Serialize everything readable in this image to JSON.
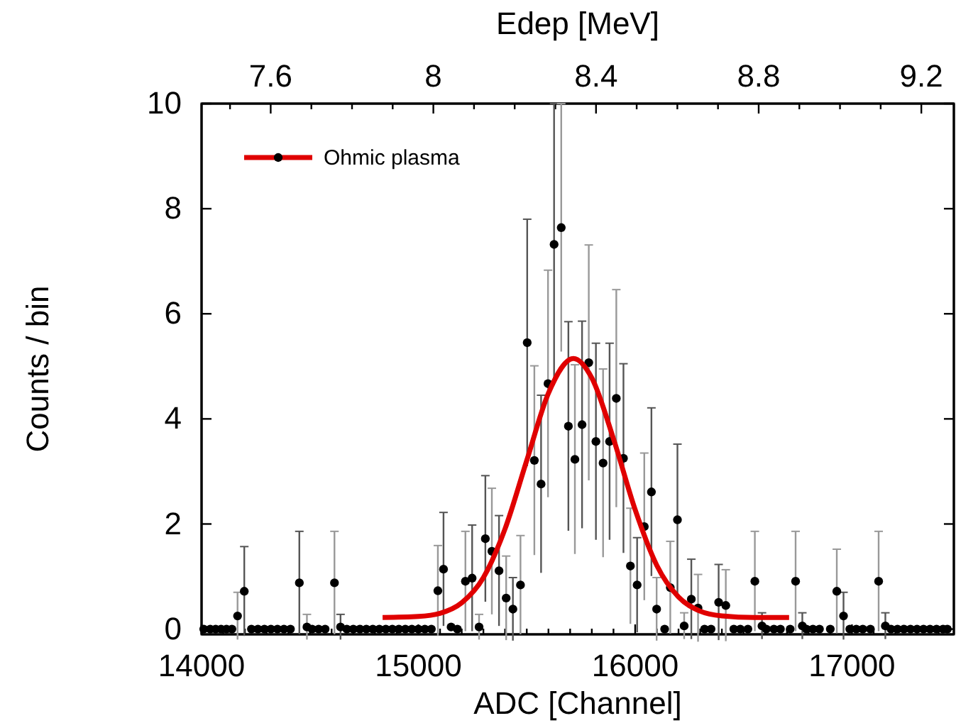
{
  "chart_data": {
    "type": "scatter",
    "xlabel": "ADC [Channel]",
    "ylabel": "Counts / bin",
    "x2label": "Edep [MeV]",
    "xlim": [
      14000,
      17470
    ],
    "ylim": [
      -0.1,
      10
    ],
    "xticks": [
      14000,
      {
        "value": 14100,
        "label": null
      },
      {
        "value": 14200,
        "label": null
      },
      {
        "value": 14300,
        "label": null
      },
      {
        "value": 14400,
        "label": null
      },
      {
        "value": 14500,
        "label": null
      },
      {
        "value": 14600,
        "label": null
      },
      {
        "value": 14700,
        "label": null
      },
      {
        "value": 14800,
        "label": null
      },
      {
        "value": 14900,
        "label": null
      },
      15000,
      {
        "value": 15100,
        "label": null
      },
      {
        "value": 15200,
        "label": null
      },
      {
        "value": 15300,
        "label": null
      },
      {
        "value": 15400,
        "label": null
      },
      {
        "value": 15500,
        "label": null
      },
      {
        "value": 15600,
        "label": null
      },
      {
        "value": 15700,
        "label": null
      },
      {
        "value": 15800,
        "label": null
      },
      {
        "value": 15900,
        "label": null
      },
      16000,
      {
        "value": 16100,
        "label": null
      },
      {
        "value": 16200,
        "label": null
      },
      {
        "value": 16300,
        "label": null
      },
      {
        "value": 16400,
        "label": null
      },
      {
        "value": 16500,
        "label": null
      },
      {
        "value": 16600,
        "label": null
      },
      {
        "value": 16700,
        "label": null
      },
      {
        "value": 16800,
        "label": null
      },
      {
        "value": 16900,
        "label": null
      },
      17000,
      {
        "value": 17100,
        "label": null
      },
      {
        "value": 17200,
        "label": null
      },
      {
        "value": 17300,
        "label": null
      },
      {
        "value": 17400,
        "label": null
      }
    ],
    "yticks": [
      0,
      2,
      4,
      6,
      8,
      10
    ],
    "x2lim": [
      7.43,
      9.28
    ],
    "x2ticks": [
      {
        "value": 7.5,
        "label": null
      },
      7.6,
      {
        "value": 7.7,
        "label": null
      },
      {
        "value": 7.8,
        "label": null
      },
      {
        "value": 7.9,
        "label": null
      },
      8,
      {
        "value": 8.1,
        "label": null
      },
      {
        "value": 8.2,
        "label": null
      },
      {
        "value": 8.3,
        "label": null
      },
      8.4,
      {
        "value": 8.5,
        "label": null
      },
      {
        "value": 8.6,
        "label": null
      },
      {
        "value": 8.7,
        "label": null
      },
      8.8,
      {
        "value": 8.9,
        "label": null
      },
      {
        "value": 9,
        "label": null
      },
      {
        "value": 9.1,
        "label": null
      },
      9.2
    ],
    "grid": false,
    "legend": "top left",
    "marker": "circle",
    "series": [
      {
        "color": "#000000",
        "x": [
          14010,
          14040,
          14065,
          14090,
          14115,
          14140,
          14166,
          14197,
          14230,
          14260,
          14290,
          14320,
          14350,
          14380,
          14410,
          14451,
          14486,
          14510,
          14540,
          14570,
          14613,
          14641,
          14670,
          14700,
          14730,
          14760,
          14790,
          14820,
          14850,
          14880,
          14910,
          14940,
          14970,
          15000,
          15030,
          15060,
          15090,
          15116,
          15151,
          15180,
          15217,
          15248,
          15280,
          15309,
          15339,
          15372,
          15405,
          15436,
          15471,
          15502,
          15535,
          15566,
          15598,
          15626,
          15659,
          15692,
          15722,
          15755,
          15786,
          15819,
          15852,
          15882,
          15913,
          15946,
          15978,
          16009,
          16042,
          16075,
          16099,
          16136,
          16162,
          16195,
          16226,
          16259,
          16290,
          16320,
          16350,
          16385,
          16418,
          16455,
          16485,
          16520,
          16552,
          16585,
          16605,
          16640,
          16670,
          16715,
          16740,
          16771,
          16790,
          16820,
          16850,
          16900,
          16930,
          16961,
          16990,
          17020,
          17050,
          17085,
          17123,
          17154,
          17180,
          17210,
          17240,
          17270,
          17300,
          17330,
          17360,
          17390,
          17420,
          17440
        ],
        "values": [
          0,
          0,
          0,
          0,
          0,
          0,
          0.25,
          0.72,
          0,
          0,
          0,
          0,
          0,
          0,
          0,
          0.88,
          0.04,
          0,
          0,
          0,
          0.88,
          0.04,
          0,
          0,
          0,
          0,
          0,
          0,
          0,
          0,
          0,
          0,
          0,
          0,
          0,
          0,
          0.73,
          1.14,
          0.04,
          0,
          0.91,
          0.97,
          0.04,
          1.72,
          1.48,
          1.11,
          0.59,
          0.38,
          0.84,
          5.45,
          3.21,
          2.76,
          4.67,
          7.32,
          7.64,
          3.86,
          3.23,
          3.89,
          5.07,
          3.57,
          3.16,
          3.57,
          4.39,
          3.25,
          1.2,
          0.84,
          1.95,
          2.61,
          0.38,
          0,
          0.79,
          2.08,
          0.06,
          0.57,
          0.4,
          0,
          0,
          0.51,
          0.45,
          0,
          0,
          0,
          0.91,
          0.06,
          0,
          0,
          0,
          0,
          0.91,
          0.06,
          0,
          0,
          0,
          0,
          0.72,
          0.25,
          0,
          0,
          0,
          0,
          0.91,
          0.06,
          0,
          0,
          0,
          0,
          0,
          0,
          0,
          0,
          0,
          0
        ],
        "errors": [
          null,
          null,
          null,
          null,
          null,
          null,
          0.45,
          0.85,
          null,
          null,
          null,
          null,
          null,
          null,
          null,
          0.98,
          0.24,
          null,
          null,
          null,
          0.98,
          0.24,
          null,
          null,
          null,
          null,
          null,
          null,
          null,
          null,
          null,
          null,
          null,
          null,
          null,
          null,
          0.86,
          1.08,
          null,
          null,
          0.95,
          1.01,
          0.24,
          1.2,
          1.2,
          1.05,
          0.8,
          0.6,
          0.94,
          2.35,
          1.8,
          1.69,
          2.16,
          2.68,
          2.36,
          1.99,
          1.8,
          1.97,
          2.24,
          1.87,
          1.79,
          1.87,
          2.07,
          1.8,
          1.1,
          0.9,
          1.4,
          1.6,
          0.6,
          null,
          0.88,
          1.44,
          0.25,
          0.76,
          0.64,
          null,
          null,
          0.72,
          0.68,
          null,
          null,
          null,
          0.95,
          0.25,
          null,
          null,
          null,
          null,
          0.95,
          0.25,
          null,
          null,
          null,
          null,
          0.8,
          0.45,
          null,
          null,
          null,
          null,
          0.95,
          0.25,
          null,
          null,
          null,
          null,
          null,
          null,
          null,
          null,
          null,
          null
        ]
      },
      {
        "type": "line",
        "name": "Ohmic plasma",
        "color": "#e00000",
        "marker": "none",
        "line_style": "solid",
        "x": [
          14835,
          15000,
          15100,
          15200,
          15300,
          15400,
          15500,
          15600,
          15715,
          15800,
          15900,
          16000,
          16100,
          16200,
          16300,
          16400,
          16550,
          16710
        ],
        "values": [
          0.22,
          0.24,
          0.3,
          0.5,
          0.98,
          1.91,
          3.21,
          4.49,
          5.15,
          4.78,
          3.62,
          2.27,
          1.21,
          0.61,
          0.34,
          0.25,
          0.22,
          0.22
        ]
      }
    ]
  }
}
